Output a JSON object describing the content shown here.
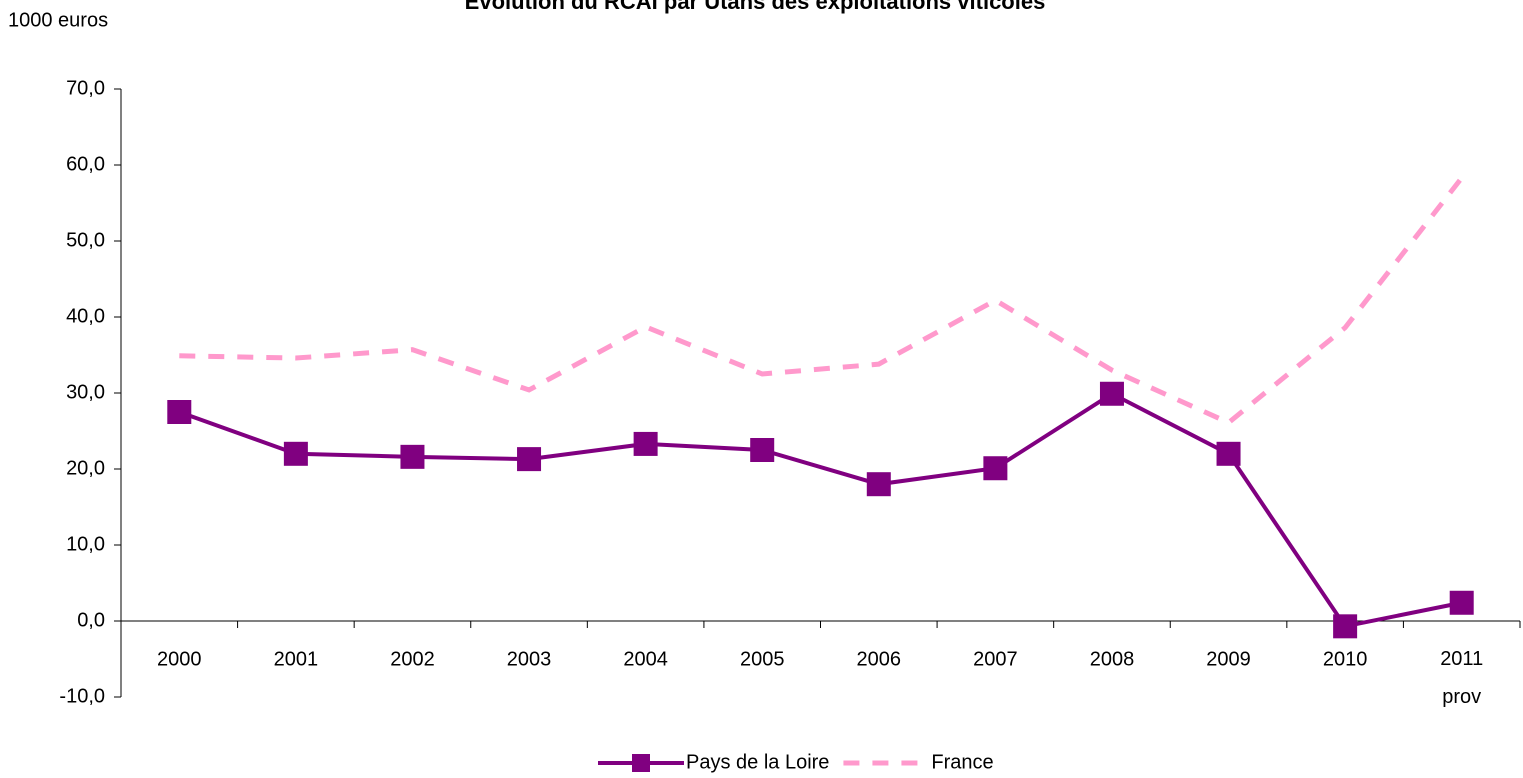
{
  "chart_data": {
    "type": "line",
    "title": "Evolution du RCAI par Utans des exploitations viticoles",
    "y_label": "1000 euros",
    "categories": [
      "2000",
      "2001",
      "2002",
      "2003",
      "2004",
      "2005",
      "2006",
      "2007",
      "2008",
      "2009",
      "2010",
      "2011\nprov"
    ],
    "series": [
      {
        "name": "Pays de la Loire",
        "color": "#800080",
        "style": "solid",
        "marker": "square",
        "values": [
          27.5,
          22.0,
          21.6,
          21.3,
          23.3,
          22.5,
          18.0,
          20.1,
          29.9,
          22.0,
          -0.7,
          2.4
        ]
      },
      {
        "name": "France",
        "color": "#ff99cc",
        "style": "dashed",
        "values": [
          34.9,
          34.6,
          35.7,
          30.4,
          38.7,
          32.5,
          33.8,
          42.2,
          33.0,
          26.1,
          38.6,
          58.3
        ]
      }
    ],
    "ylim": [
      -10,
      70
    ],
    "yticks": [
      {
        "value": -10,
        "label": "-10,0"
      },
      {
        "value": 0,
        "label": "0,0"
      },
      {
        "value": 10,
        "label": "10,0"
      },
      {
        "value": 20,
        "label": "20,0"
      },
      {
        "value": 30,
        "label": "30,0"
      },
      {
        "value": 40,
        "label": "40,0"
      },
      {
        "value": 50,
        "label": "50,0"
      },
      {
        "value": 60,
        "label": "60,0"
      },
      {
        "value": 70,
        "label": "70,0"
      }
    ],
    "legend": "bottom"
  }
}
